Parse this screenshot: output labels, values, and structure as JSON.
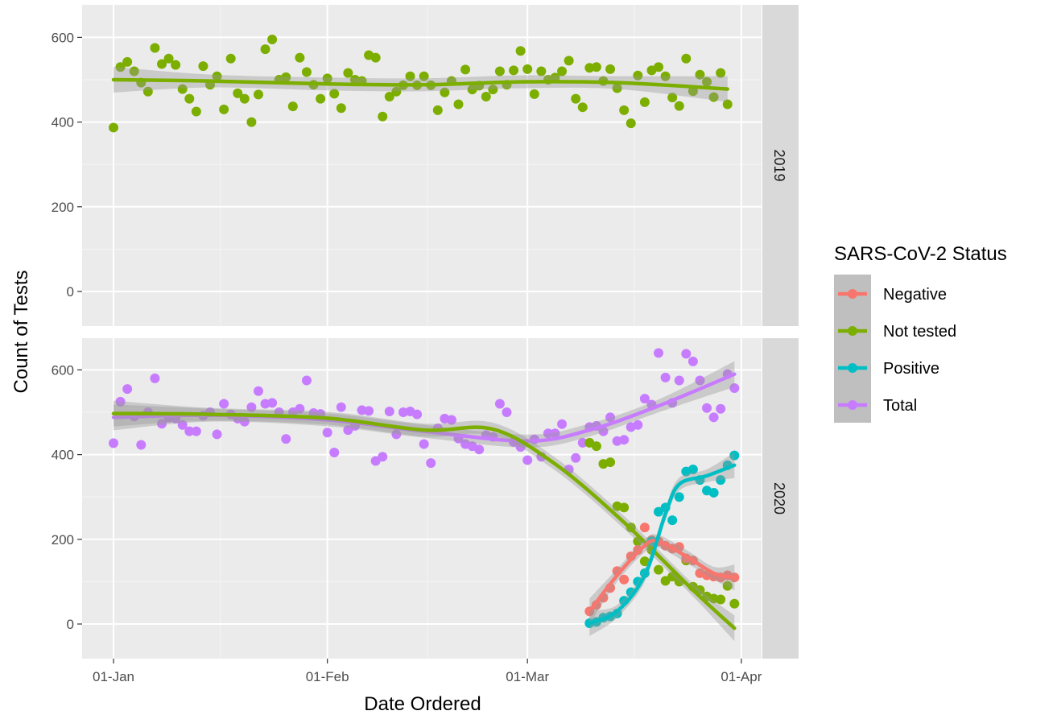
{
  "chart_data": {
    "type": "scatter",
    "xlabel": "Date Ordered",
    "ylabel": "Count of Tests",
    "x_ticks": [
      "01-Jan",
      "01-Feb",
      "01-Mar",
      "01-Apr"
    ],
    "y_ticks": [
      0,
      200,
      400,
      600
    ],
    "ylim": [
      -80,
      680
    ],
    "legend": {
      "title": "SARS-CoV-2 Status",
      "position": "right"
    },
    "colors": {
      "Negative": "#F8766D",
      "Not tested": "#7CAE00",
      "Positive": "#00BFC4",
      "Total": "#C77CFF"
    },
    "facets": [
      {
        "label": "2019",
        "series": [
          {
            "name": "Not tested",
            "x": [
              "2019-01-01",
              "2019-01-02",
              "2019-01-03",
              "2019-01-04",
              "2019-01-05",
              "2019-01-06",
              "2019-01-07",
              "2019-01-08",
              "2019-01-09",
              "2019-01-10",
              "2019-01-11",
              "2019-01-12",
              "2019-01-13",
              "2019-01-14",
              "2019-01-15",
              "2019-01-16",
              "2019-01-17",
              "2019-01-18",
              "2019-01-19",
              "2019-01-20",
              "2019-01-21",
              "2019-01-22",
              "2019-01-23",
              "2019-01-24",
              "2019-01-25",
              "2019-01-26",
              "2019-01-27",
              "2019-01-28",
              "2019-01-29",
              "2019-01-30",
              "2019-01-31",
              "2019-02-01",
              "2019-02-02",
              "2019-02-03",
              "2019-02-04",
              "2019-02-05",
              "2019-02-06",
              "2019-02-07",
              "2019-02-08",
              "2019-02-09",
              "2019-02-10",
              "2019-02-11",
              "2019-02-12",
              "2019-02-13",
              "2019-02-14",
              "2019-02-15",
              "2019-02-16",
              "2019-02-17",
              "2019-02-18",
              "2019-02-19",
              "2019-02-20",
              "2019-02-21",
              "2019-02-22",
              "2019-02-23",
              "2019-02-24",
              "2019-02-25",
              "2019-02-26",
              "2019-02-27",
              "2019-02-28",
              "2019-03-01",
              "2019-03-02",
              "2019-03-03",
              "2019-03-04",
              "2019-03-05",
              "2019-03-06",
              "2019-03-07",
              "2019-03-08",
              "2019-03-09",
              "2019-03-10",
              "2019-03-11",
              "2019-03-12",
              "2019-03-13",
              "2019-03-14",
              "2019-03-15",
              "2019-03-16",
              "2019-03-17",
              "2019-03-18",
              "2019-03-19",
              "2019-03-20",
              "2019-03-21",
              "2019-03-22",
              "2019-03-23",
              "2019-03-24",
              "2019-03-25",
              "2019-03-26",
              "2019-03-27",
              "2019-03-28",
              "2019-03-29",
              "2019-03-30",
              "2019-03-31"
            ],
            "y": [
              387,
              530,
              542,
              520,
              493,
              472,
              575,
              537,
              550,
              535,
              478,
              455,
              425,
              532,
              488,
              508,
              430,
              550,
              468,
              455,
              400,
              465,
              572,
              595,
              500,
              506,
              437,
              552,
              518,
              488,
              455,
              503,
              467,
              433,
              516,
              500,
              497,
              558,
              552,
              413,
              460,
              472,
              487,
              508,
              487,
              508,
              487,
              428,
              470,
              497,
              442,
              524,
              477,
              486,
              460,
              477,
              520,
              488,
              522,
              568,
              525,
              466,
              520,
              500,
              505,
              520,
              545,
              455,
              435,
              528,
              530,
              497,
              525,
              480,
              428,
              397,
              510,
              447,
              522,
              530,
              508,
              458,
              438,
              550,
              473,
              512,
              495,
              459,
              516,
              442
            ],
            "smooth_x": [
              "2019-01-01",
              "2019-01-15",
              "2019-02-01",
              "2019-02-15",
              "2019-03-01",
              "2019-03-15",
              "2019-03-31"
            ],
            "smooth_y": [
              500,
              497,
              490,
              488,
              495,
              493,
              478
            ]
          }
        ]
      },
      {
        "label": "2020",
        "series": [
          {
            "name": "Total",
            "x": [
              "2020-01-01",
              "2020-01-02",
              "2020-01-03",
              "2020-01-04",
              "2020-01-05",
              "2020-01-06",
              "2020-01-07",
              "2020-01-08",
              "2020-01-09",
              "2020-01-10",
              "2020-01-11",
              "2020-01-12",
              "2020-01-13",
              "2020-01-14",
              "2020-01-15",
              "2020-01-16",
              "2020-01-17",
              "2020-01-18",
              "2020-01-19",
              "2020-01-20",
              "2020-01-21",
              "2020-01-22",
              "2020-01-23",
              "2020-01-24",
              "2020-01-25",
              "2020-01-26",
              "2020-01-27",
              "2020-01-28",
              "2020-01-29",
              "2020-01-30",
              "2020-01-31",
              "2020-02-01",
              "2020-02-02",
              "2020-02-03",
              "2020-02-04",
              "2020-02-05",
              "2020-02-06",
              "2020-02-07",
              "2020-02-08",
              "2020-02-09",
              "2020-02-10",
              "2020-02-11",
              "2020-02-12",
              "2020-02-13",
              "2020-02-14",
              "2020-02-15",
              "2020-02-16",
              "2020-02-17",
              "2020-02-18",
              "2020-02-19",
              "2020-02-20",
              "2020-02-21",
              "2020-02-22",
              "2020-02-23",
              "2020-02-24",
              "2020-02-25",
              "2020-02-26",
              "2020-02-27",
              "2020-02-28",
              "2020-02-29",
              "2020-03-01",
              "2020-03-02",
              "2020-03-03",
              "2020-03-04",
              "2020-03-05",
              "2020-03-06",
              "2020-03-07",
              "2020-03-08",
              "2020-03-09",
              "2020-03-10",
              "2020-03-11",
              "2020-03-12",
              "2020-03-13",
              "2020-03-14",
              "2020-03-15",
              "2020-03-16",
              "2020-03-17",
              "2020-03-18",
              "2020-03-19",
              "2020-03-20",
              "2020-03-21",
              "2020-03-22",
              "2020-03-23",
              "2020-03-24",
              "2020-03-25",
              "2020-03-26",
              "2020-03-27",
              "2020-03-28",
              "2020-03-29",
              "2020-03-30",
              "2020-03-31"
            ],
            "y": [
              427,
              525,
              555,
              490,
              423,
              500,
              580,
              473,
              487,
              485,
              470,
              455,
              455,
              492,
              500,
              448,
              520,
              495,
              485,
              478,
              512,
              550,
              520,
              522,
              500,
              437,
              500,
              508,
              575,
              498,
              496,
              452,
              405,
              512,
              458,
              468,
              505,
              503,
              385,
              395,
              502,
              448,
              500,
              502,
              495,
              425,
              380,
              462,
              485,
              482,
              438,
              425,
              420,
              412,
              446,
              442,
              520,
              500,
              430,
              418,
              387,
              436,
              395,
              450,
              450,
              472,
              365,
              392,
              428,
              465,
              468,
              455,
              488,
              432,
              435,
              465,
              470,
              532,
              518,
              640,
              582,
              522,
              575,
              638,
              620,
              575,
              510,
              488,
              508,
              590,
              557
            ],
            "smooth_x": [
              "2020-01-01",
              "2020-01-15",
              "2020-02-01",
              "2020-02-15",
              "2020-03-01",
              "2020-03-10",
              "2020-03-20",
              "2020-03-31"
            ],
            "smooth_y": [
              488,
              493,
              482,
              455,
              432,
              458,
              515,
              590
            ]
          },
          {
            "name": "Not tested",
            "x": [
              "2020-03-10",
              "2020-03-11",
              "2020-03-12",
              "2020-03-13",
              "2020-03-14",
              "2020-03-15",
              "2020-03-16",
              "2020-03-17",
              "2020-03-18",
              "2020-03-19",
              "2020-03-20",
              "2020-03-21",
              "2020-03-22",
              "2020-03-23",
              "2020-03-24",
              "2020-03-25",
              "2020-03-26",
              "2020-03-27",
              "2020-03-28",
              "2020-03-29",
              "2020-03-30",
              "2020-03-31"
            ],
            "y": [
              428,
              420,
              378,
              382,
              278,
              275,
              228,
              195,
              148,
              175,
              128,
              102,
              112,
              100,
              150,
              88,
              80,
              65,
              60,
              58,
              90,
              48
            ],
            "smooth_x": [
              "2020-01-01",
              "2020-01-15",
              "2020-02-01",
              "2020-02-15",
              "2020-02-25",
              "2020-03-05",
              "2020-03-15",
              "2020-03-25",
              "2020-03-31"
            ],
            "smooth_y": [
              497,
              495,
              486,
              458,
              460,
              378,
              240,
              80,
              -10
            ]
          },
          {
            "name": "Negative",
            "x": [
              "2020-03-10",
              "2020-03-11",
              "2020-03-12",
              "2020-03-13",
              "2020-03-14",
              "2020-03-15",
              "2020-03-16",
              "2020-03-17",
              "2020-03-18",
              "2020-03-19",
              "2020-03-20",
              "2020-03-21",
              "2020-03-22",
              "2020-03-23",
              "2020-03-24",
              "2020-03-25",
              "2020-03-26",
              "2020-03-27",
              "2020-03-28",
              "2020-03-29",
              "2020-03-30",
              "2020-03-31"
            ],
            "y": [
              30,
              45,
              62,
              85,
              125,
              105,
              160,
              175,
              228,
              198,
              195,
              185,
              178,
              182,
              155,
              150,
              120,
              115,
              112,
              110,
              115,
              110
            ],
            "smooth_x": [
              "2020-03-10",
              "2020-03-14",
              "2020-03-18",
              "2020-03-20",
              "2020-03-24",
              "2020-03-28",
              "2020-03-31"
            ],
            "smooth_y": [
              30,
              115,
              185,
              195,
              160,
              120,
              110
            ]
          },
          {
            "name": "Positive",
            "x": [
              "2020-03-10",
              "2020-03-11",
              "2020-03-12",
              "2020-03-13",
              "2020-03-14",
              "2020-03-15",
              "2020-03-16",
              "2020-03-17",
              "2020-03-18",
              "2020-03-19",
              "2020-03-20",
              "2020-03-21",
              "2020-03-22",
              "2020-03-23",
              "2020-03-24",
              "2020-03-25",
              "2020-03-26",
              "2020-03-27",
              "2020-03-28",
              "2020-03-29",
              "2020-03-30",
              "2020-03-31"
            ],
            "y": [
              2,
              5,
              15,
              18,
              25,
              55,
              75,
              100,
              120,
              195,
              265,
              275,
              245,
              300,
              360,
              365,
              340,
              315,
              310,
              340,
              375,
              398
            ],
            "smooth_x": [
              "2020-03-10",
              "2020-03-14",
              "2020-03-18",
              "2020-03-21",
              "2020-03-23",
              "2020-03-27",
              "2020-03-31"
            ],
            "smooth_y": [
              2,
              30,
              115,
              260,
              330,
              350,
              375
            ]
          }
        ]
      }
    ]
  }
}
